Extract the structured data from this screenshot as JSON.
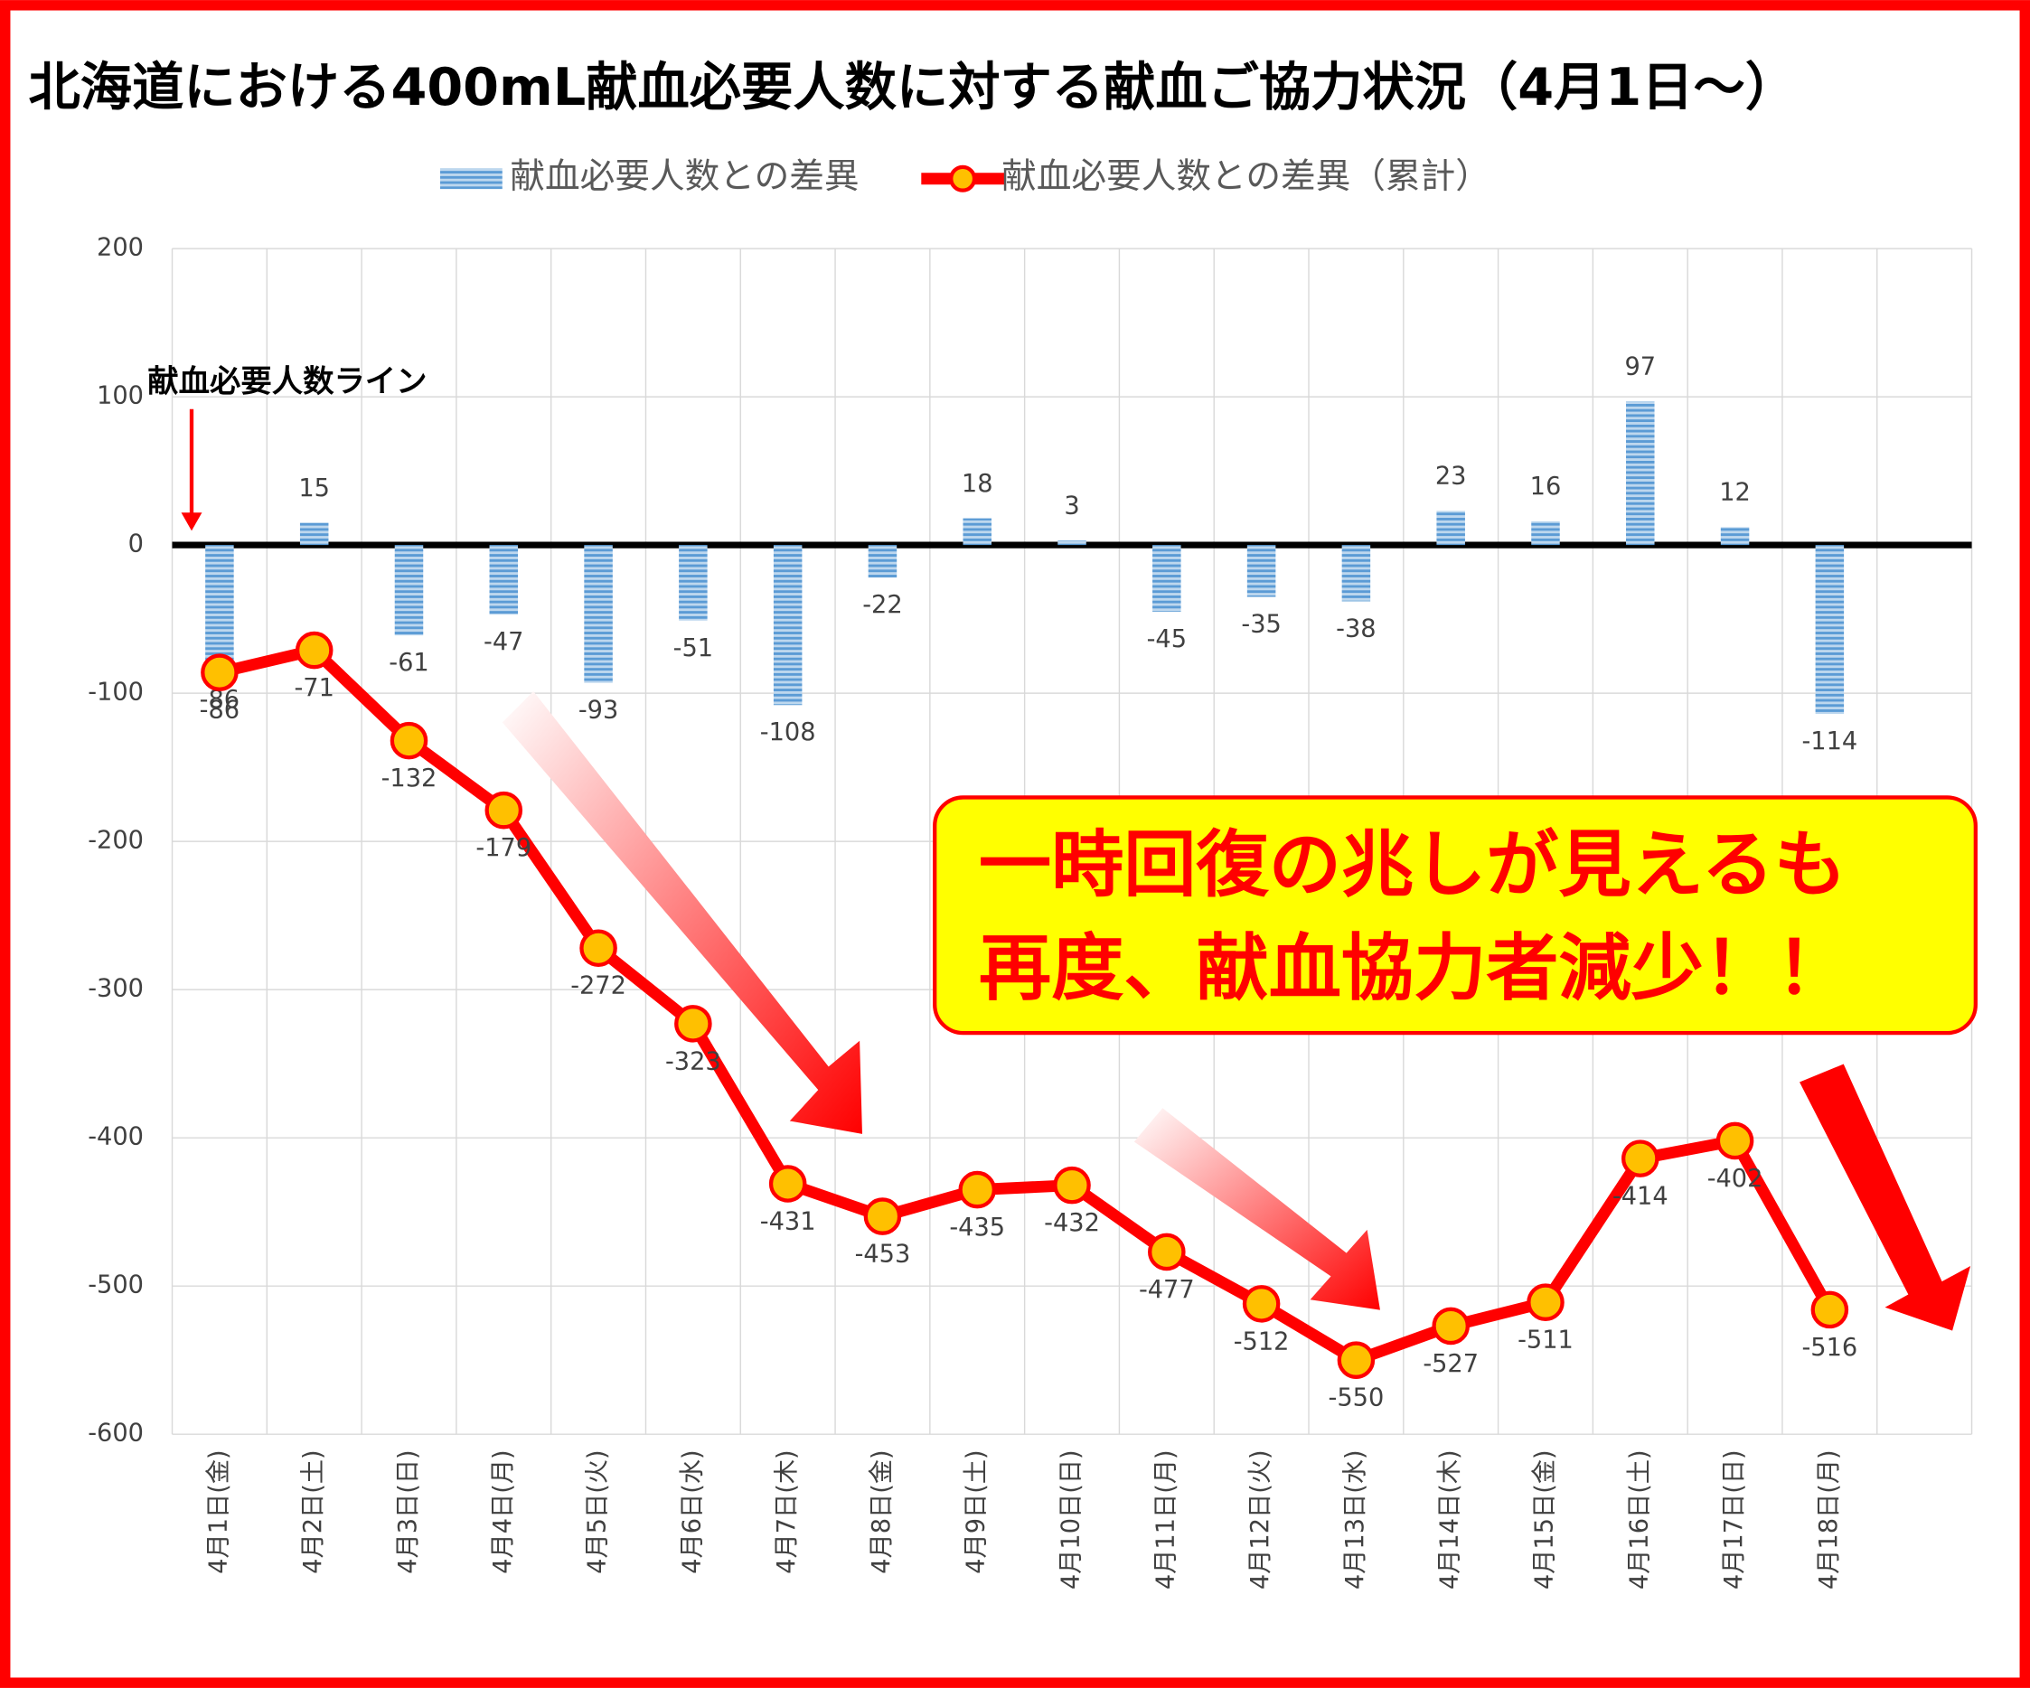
{
  "chart_data": {
    "type": "bar_line",
    "title": "北海道における400mL献血必要人数に対する献血ご協力状況（4月1日～）",
    "annotations": [
      "献血必要人数ライン",
      "一時回復の兆しが見えるも",
      "再度、献血協力者減少！！"
    ],
    "categories": [
      "4月1日(金)",
      "4月2日(土)",
      "4月3日(日)",
      "4月4日(月)",
      "4月5日(火)",
      "4月6日(水)",
      "4月7日(木)",
      "4月8日(金)",
      "4月9日(土)",
      "4月10日(日)",
      "4月11日(月)",
      "4月12日(火)",
      "4月13日(水)",
      "4月14日(木)",
      "4月15日(金)",
      "4月16日(土)",
      "4月17日(日)",
      "4月18日(月)",
      null
    ],
    "series": [
      {
        "name": "献血必要人数との差異",
        "type": "bar",
        "color": "#5b9bd5",
        "values": [
          -86,
          15,
          -61,
          -47,
          -93,
          -51,
          -108,
          -22,
          18,
          3,
          -45,
          -35,
          -38,
          23,
          16,
          97,
          12,
          -114,
          null
        ]
      },
      {
        "name": "献血必要人数との差異（累計）",
        "type": "line",
        "color": "#ff0000",
        "marker_color": "#ffc000",
        "values": [
          -86,
          -71,
          -132,
          -179,
          -272,
          -323,
          -431,
          -453,
          -435,
          -432,
          -477,
          -512,
          -550,
          -527,
          -511,
          -414,
          -402,
          -516,
          null
        ]
      }
    ],
    "ylim": [
      -600,
      200
    ],
    "yticks": [
      -600,
      -500,
      -400,
      -300,
      -200,
      -100,
      0,
      100,
      200
    ],
    "grid": true
  }
}
